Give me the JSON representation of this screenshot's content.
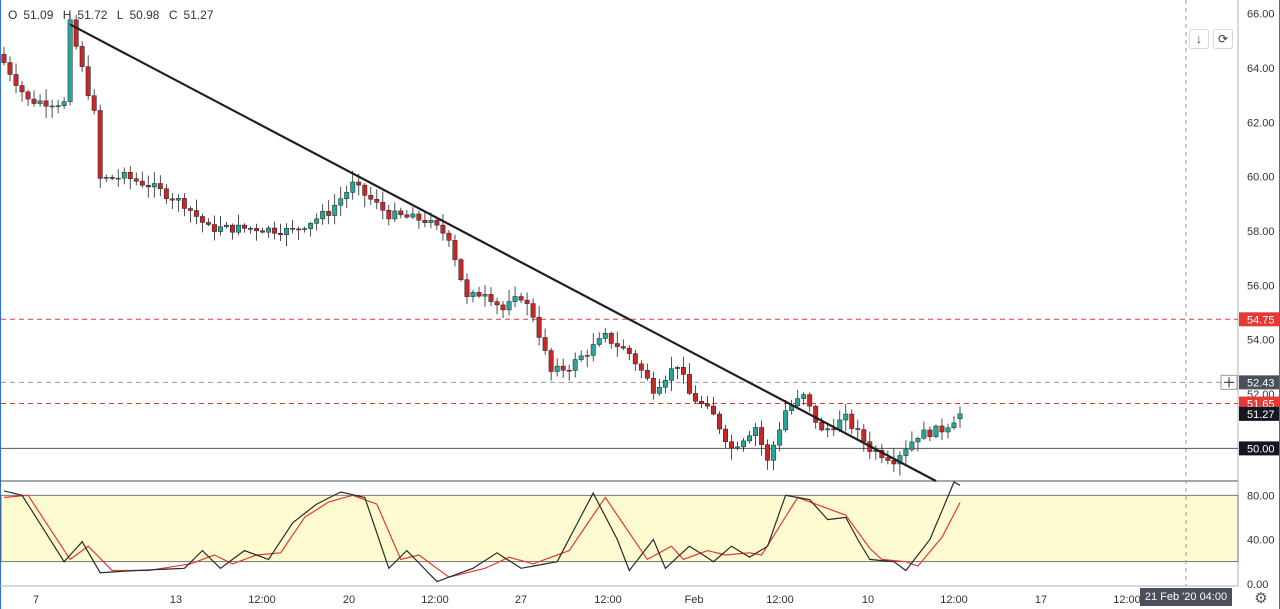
{
  "ohlc_legend": {
    "open_label": "O",
    "open": "51.09",
    "high_label": "H",
    "high": "51.72",
    "low_label": "L",
    "low": "50.98",
    "close_label": "C",
    "close": "51.27"
  },
  "toolbar": {
    "scroll_icon": "arrow-down-icon",
    "reset_icon": "refresh-icon"
  },
  "crosshair_date_label": "21 Feb '20  04:00",
  "settings_icon": "gear-icon",
  "colors": {
    "up": "#26a69a",
    "down": "#c62828",
    "trendline": "#1f1f1f",
    "support": "#555555",
    "resistance": "#e53935",
    "crosshair": "#999999",
    "stoch_band": "#fffbd0",
    "stoch_k": "#2a2a2a",
    "stoch_d": "#e53935",
    "price_tag_red": "#e53935",
    "price_tag_dark": "#131722",
    "price_tag_gray": "#4a4f5c"
  },
  "chart_data": [
    {
      "type": "candlestick",
      "y_range": [
        48.8,
        66.5
      ],
      "y_ticks": [
        "66.00",
        "64.00",
        "62.00",
        "60.00",
        "58.00",
        "56.00",
        "54.00",
        "52.00"
      ],
      "x_ticks": [
        "7",
        "13",
        "12:00",
        "20",
        "12:00",
        "27",
        "12:00",
        "Feb",
        "12:00",
        "10",
        "12:00",
        "17",
        "12:00"
      ],
      "candle_count": 160,
      "price_path": [
        [
          0,
          64.2
        ],
        [
          4,
          62.8
        ],
        [
          10,
          62.7
        ],
        [
          11,
          65.6
        ],
        [
          15,
          62.3
        ],
        [
          16,
          59.9
        ],
        [
          20,
          60.0
        ],
        [
          24,
          59.7
        ],
        [
          30,
          59.0
        ],
        [
          34,
          58.1
        ],
        [
          42,
          58.1
        ],
        [
          48,
          58.0
        ],
        [
          54,
          58.7
        ],
        [
          58,
          59.7
        ],
        [
          64,
          58.6
        ],
        [
          70,
          58.4
        ],
        [
          74,
          57.8
        ],
        [
          77,
          55.5
        ],
        [
          80,
          55.8
        ],
        [
          83,
          55.1
        ],
        [
          86,
          55.6
        ],
        [
          88,
          54.9
        ],
        [
          91,
          52.8
        ],
        [
          94,
          53.0
        ],
        [
          100,
          54.1
        ],
        [
          104,
          53.5
        ],
        [
          108,
          52.2
        ],
        [
          112,
          53.1
        ],
        [
          114,
          52.0
        ],
        [
          118,
          51.2
        ],
        [
          121,
          50.0
        ],
        [
          125,
          50.8
        ],
        [
          127,
          49.5
        ],
        [
          130,
          51.4
        ],
        [
          133,
          51.9
        ],
        [
          136,
          50.6
        ],
        [
          140,
          51.1
        ],
        [
          144,
          50.0
        ],
        [
          148,
          49.6
        ],
        [
          152,
          50.5
        ],
        [
          156,
          50.7
        ],
        [
          159,
          51.27
        ]
      ],
      "trendline": {
        "from": {
          "index": 11,
          "price": 65.6
        },
        "to": {
          "index": 155,
          "price": 48.8
        }
      },
      "horizontal_levels": [
        {
          "price": 54.75,
          "label": "54.75",
          "style": "dashed",
          "color": "red"
        },
        {
          "price": 51.65,
          "label": "51.65",
          "style": "dashed",
          "color": "red"
        },
        {
          "price": 50.0,
          "label": "50.00",
          "style": "solid",
          "color": "gray"
        },
        {
          "price": 52.43,
          "label": "52.43",
          "style": "dashed",
          "color": "gray",
          "crosshair": true
        }
      ],
      "last_price": {
        "price": 51.27,
        "label": "51.27"
      }
    },
    {
      "type": "line",
      "title": "",
      "y_range": [
        -2,
        92
      ],
      "y_ticks": [
        "80.00",
        "40.00",
        "0.00"
      ],
      "band": [
        20,
        80
      ],
      "k_path": [
        [
          0,
          84
        ],
        [
          3,
          80
        ],
        [
          10,
          20
        ],
        [
          13,
          38
        ],
        [
          16,
          10
        ],
        [
          22,
          12
        ],
        [
          30,
          14
        ],
        [
          33,
          30
        ],
        [
          36,
          14
        ],
        [
          40,
          30
        ],
        [
          44,
          22
        ],
        [
          48,
          55
        ],
        [
          52,
          72
        ],
        [
          56,
          83
        ],
        [
          60,
          78
        ],
        [
          64,
          14
        ],
        [
          67,
          30
        ],
        [
          72,
          2
        ],
        [
          78,
          14
        ],
        [
          82,
          28
        ],
        [
          86,
          14
        ],
        [
          92,
          20
        ],
        [
          98,
          82
        ],
        [
          102,
          40
        ],
        [
          104,
          12
        ],
        [
          108,
          40
        ],
        [
          110,
          14
        ],
        [
          114,
          34
        ],
        [
          118,
          20
        ],
        [
          121,
          34
        ],
        [
          124,
          24
        ],
        [
          127,
          34
        ],
        [
          130,
          80
        ],
        [
          134,
          76
        ],
        [
          137,
          58
        ],
        [
          140,
          60
        ],
        [
          142,
          40
        ],
        [
          144,
          22
        ],
        [
          148,
          20
        ],
        [
          150,
          12
        ],
        [
          154,
          40
        ],
        [
          158,
          92
        ],
        [
          160,
          86
        ]
      ],
      "d_path": [
        [
          0,
          78
        ],
        [
          4,
          80
        ],
        [
          11,
          22
        ],
        [
          14,
          34
        ],
        [
          18,
          12
        ],
        [
          24,
          12
        ],
        [
          31,
          18
        ],
        [
          35,
          26
        ],
        [
          38,
          18
        ],
        [
          42,
          26
        ],
        [
          46,
          28
        ],
        [
          50,
          60
        ],
        [
          54,
          74
        ],
        [
          58,
          80
        ],
        [
          62,
          72
        ],
        [
          66,
          22
        ],
        [
          69,
          26
        ],
        [
          74,
          6
        ],
        [
          80,
          14
        ],
        [
          84,
          24
        ],
        [
          88,
          18
        ],
        [
          94,
          30
        ],
        [
          100,
          78
        ],
        [
          104,
          46
        ],
        [
          107,
          22
        ],
        [
          111,
          34
        ],
        [
          113,
          22
        ],
        [
          117,
          30
        ],
        [
          120,
          26
        ],
        [
          124,
          28
        ],
        [
          126,
          26
        ],
        [
          132,
          78
        ],
        [
          136,
          70
        ],
        [
          140,
          62
        ],
        [
          144,
          32
        ],
        [
          146,
          22
        ],
        [
          150,
          20
        ],
        [
          152,
          16
        ],
        [
          156,
          42
        ],
        [
          160,
          84
        ]
      ]
    }
  ]
}
